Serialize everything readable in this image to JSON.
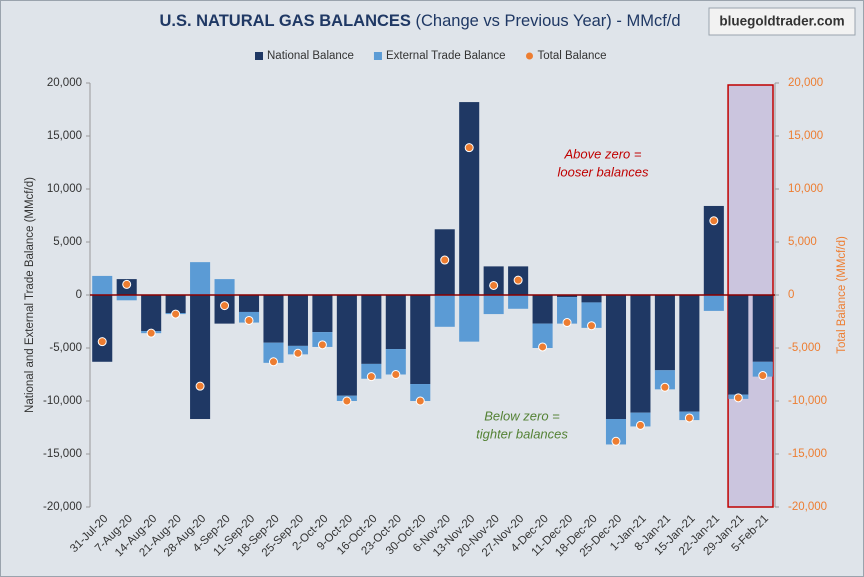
{
  "chart_data": {
    "type": "bar",
    "title": "U.S. NATURAL GAS BALANCES",
    "title_suffix": "(Change vs Previous Year) - MMcf/d",
    "watermark": "bluegoldtrader.com",
    "ylabel": "National and External Trade Balance (MMcf/d)",
    "y2label": "Total Balance (MMcf/d)",
    "annotations": [
      {
        "lines": [
          "Above zero =",
          "looser balances"
        ],
        "color": "#c00000"
      },
      {
        "lines": [
          "Below zero =",
          "tighter balances"
        ],
        "color": "#548235"
      }
    ],
    "categories": [
      "31-Jul-20",
      "7-Aug-20",
      "14-Aug-20",
      "21-Aug-20",
      "28-Aug-20",
      "4-Sep-20",
      "11-Sep-20",
      "18-Sep-20",
      "25-Sep-20",
      "2-Oct-20",
      "9-Oct-20",
      "16-Oct-20",
      "23-Oct-20",
      "30-Oct-20",
      "6-Nov-20",
      "13-Nov-20",
      "20-Nov-20",
      "27-Nov-20",
      "4-Dec-20",
      "11-Dec-20",
      "18-Dec-20",
      "25-Dec-20",
      "1-Jan-21",
      "8-Jan-21",
      "15-Jan-21",
      "22-Jan-21",
      "29-Jan-21",
      "5-Feb-21"
    ],
    "series": [
      {
        "name": "National Balance",
        "color": "#1f3864",
        "values": [
          -6300,
          1500,
          -3400,
          -1700,
          -11700,
          -2700,
          -1600,
          -4500,
          -4800,
          -3500,
          -9500,
          -6500,
          -5100,
          -8400,
          6200,
          18200,
          2700,
          2700,
          -2700,
          -200,
          -700,
          -11700,
          -11100,
          -7100,
          -11000,
          8400,
          -9400,
          -6300
        ]
      },
      {
        "name": "External Trade Balance",
        "color": "#5b9bd5",
        "values": [
          1800,
          -500,
          -200,
          -100,
          3100,
          1500,
          -1000,
          -1900,
          -800,
          -1400,
          -500,
          -1400,
          -2400,
          -1600,
          -3000,
          -4400,
          -1800,
          -1300,
          -2300,
          -2500,
          -2400,
          -2400,
          -1300,
          -1800,
          -800,
          -1500,
          -400,
          -1400
        ]
      },
      {
        "name": "Total Balance",
        "color": "#ed7d31",
        "axis": "y2",
        "values": [
          -4400,
          1000,
          -3600,
          -1800,
          -8600,
          -1000,
          -2400,
          -6300,
          -5500,
          -4700,
          -10000,
          -7700,
          -7500,
          -10000,
          3300,
          13900,
          900,
          1400,
          -4900,
          -2600,
          -2900,
          -13800,
          -12300,
          -8700,
          -11600,
          7000,
          -9700,
          -7600
        ]
      }
    ],
    "ylim": [
      -20000,
      20000
    ],
    "yticks": [
      {
        "value": -20000,
        "label": "-20,000"
      },
      {
        "value": -15000,
        "label": "-15,000"
      },
      {
        "value": -10000,
        "label": "-10,000"
      },
      {
        "value": -5000,
        "label": "-5,000"
      },
      0,
      {
        "value": 5000,
        "label": "5,000"
      },
      {
        "value": 10000,
        "label": "10,000"
      },
      {
        "value": 15000,
        "label": "15,000"
      },
      {
        "value": 20000,
        "label": "20,000"
      }
    ],
    "y2lim": [
      -20000,
      20000
    ],
    "y2ticks": [
      {
        "value": -20000,
        "label": "-20,000"
      },
      {
        "value": -15000,
        "label": "-15,000"
      },
      {
        "value": -10000,
        "label": "-10,000"
      },
      {
        "value": -5000,
        "label": "-5,000"
      },
      0,
      {
        "value": 5000,
        "label": "5,000"
      },
      {
        "value": 10000,
        "label": "10,000"
      },
      {
        "value": 15000,
        "label": "15,000"
      },
      {
        "value": 20000,
        "label": "20,000"
      }
    ],
    "zero_line_color": "#8b0000",
    "highlight_last": 2,
    "legend": "top"
  }
}
